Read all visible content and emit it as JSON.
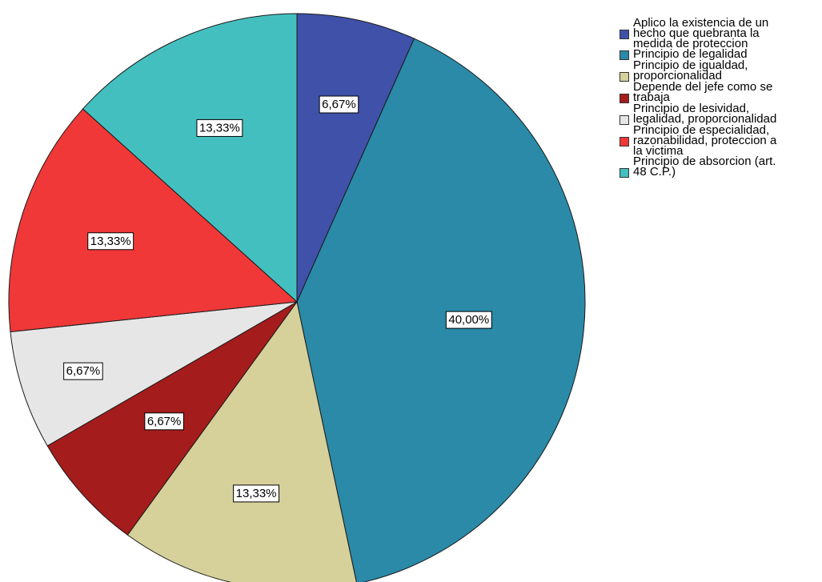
{
  "chart_data": {
    "type": "pie",
    "categories": [
      "Aplico la existencia de un hecho que quebranta la medida de proteccion",
      "Principio de legalidad",
      "Principio de igualdad, proporcionalidad",
      "Depende del jefe como se trabaja",
      "Principio de lesividad, legalidad, proporcionalidad",
      "Principio de especialidad, razonabilidad, proteccion a la victima",
      "Principio de absorcion (art. 48 C.P.)"
    ],
    "values": [
      6.67,
      40.0,
      13.33,
      6.67,
      6.67,
      13.33,
      13.33
    ],
    "data_labels": [
      "6,67%",
      "40,00%",
      "13,33%",
      "6,67%",
      "6,67%",
      "13,33%",
      "13,33%"
    ],
    "colors": [
      "#3f51a8",
      "#2a8aa8",
      "#d6d09a",
      "#a51c1c",
      "#e6e6e6",
      "#f03838",
      "#44bfbf"
    ],
    "legend_placement": "right",
    "start_angle": "top, clockwise"
  },
  "legend": {
    "items": [
      {
        "label": "Aplico la existencia de un\nhecho que quebranta la\nmedida de proteccion"
      },
      {
        "label": "Principio de legalidad"
      },
      {
        "label": "Principio de igualdad,\nproporcionalidad"
      },
      {
        "label": "Depende del jefe como se\ntrabaja"
      },
      {
        "label": "Principio de lesividad,\nlegalidad, proporcionalidad"
      },
      {
        "label": "Principio de especialidad,\nrazonabilidad, proteccion a\nla victima"
      },
      {
        "label": "Principio de absorcion (art.\n48 C.P.)"
      }
    ]
  }
}
